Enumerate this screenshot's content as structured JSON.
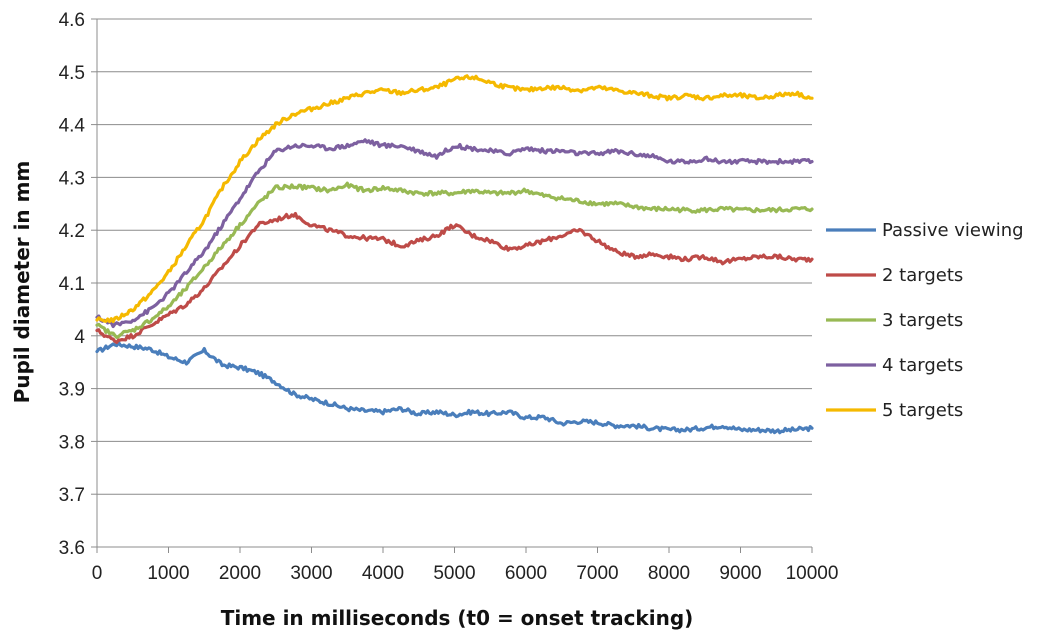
{
  "chart_data": {
    "type": "line",
    "xlabel": "Time in milliseconds (t0 = onset tracking)",
    "ylabel": "Pupil diameter in mm",
    "xlim": [
      0,
      10000
    ],
    "ylim": [
      3.6,
      4.6
    ],
    "x_ticks": [
      "0",
      "1000",
      "2000",
      "3000",
      "4000",
      "5000",
      "6000",
      "7000",
      "8000",
      "9000",
      "10000"
    ],
    "y_ticks": [
      "3.6",
      "3.7",
      "3.8",
      "3.9",
      "4",
      "4.1",
      "4.2",
      "4.3",
      "4.4",
      "4.5",
      "4.6"
    ],
    "grid": "horizontal",
    "legend_position": "right",
    "x": [
      0,
      250,
      500,
      750,
      1000,
      1250,
      1500,
      1750,
      2000,
      2250,
      2500,
      2750,
      3000,
      3250,
      3500,
      3750,
      4000,
      4250,
      4500,
      4750,
      5000,
      5250,
      5500,
      5750,
      6000,
      6250,
      6500,
      6750,
      7000,
      7250,
      7500,
      7750,
      8000,
      8250,
      8500,
      8750,
      9000,
      9250,
      9500,
      9750,
      10000
    ],
    "series": [
      {
        "name": "Passive viewing",
        "color": "#4a7ebb",
        "values": [
          3.97,
          3.985,
          3.98,
          3.975,
          3.96,
          3.95,
          3.972,
          3.945,
          3.94,
          3.93,
          3.912,
          3.89,
          3.88,
          3.872,
          3.862,
          3.858,
          3.856,
          3.862,
          3.852,
          3.856,
          3.85,
          3.856,
          3.852,
          3.856,
          3.845,
          3.846,
          3.834,
          3.838,
          3.836,
          3.83,
          3.83,
          3.825,
          3.822,
          3.822,
          3.826,
          3.83,
          3.822,
          3.822,
          3.82,
          3.822,
          3.825
        ]
      },
      {
        "name": "2 targets",
        "color": "#be4b48",
        "values": [
          4.01,
          3.99,
          4.0,
          4.02,
          4.04,
          4.06,
          4.09,
          4.13,
          4.17,
          4.21,
          4.22,
          4.23,
          4.21,
          4.2,
          4.19,
          4.185,
          4.183,
          4.17,
          4.18,
          4.19,
          4.21,
          4.19,
          4.18,
          4.165,
          4.17,
          4.18,
          4.19,
          4.2,
          4.18,
          4.16,
          4.15,
          4.155,
          4.15,
          4.145,
          4.15,
          4.14,
          4.145,
          4.15,
          4.15,
          4.145,
          4.145
        ]
      },
      {
        "name": "3 targets",
        "color": "#98b954",
        "values": [
          4.02,
          4.0,
          4.01,
          4.03,
          4.055,
          4.09,
          4.13,
          4.17,
          4.21,
          4.25,
          4.28,
          4.283,
          4.28,
          4.275,
          4.285,
          4.275,
          4.28,
          4.275,
          4.27,
          4.27,
          4.27,
          4.275,
          4.27,
          4.27,
          4.275,
          4.265,
          4.26,
          4.255,
          4.25,
          4.25,
          4.245,
          4.24,
          4.24,
          4.238,
          4.238,
          4.24,
          4.238,
          4.238,
          4.238,
          4.24,
          4.24
        ]
      },
      {
        "name": "4 targets",
        "color": "#7d60a0",
        "values": [
          4.035,
          4.02,
          4.03,
          4.05,
          4.08,
          4.12,
          4.16,
          4.21,
          4.26,
          4.31,
          4.35,
          4.36,
          4.36,
          4.355,
          4.36,
          4.37,
          4.36,
          4.36,
          4.35,
          4.34,
          4.36,
          4.355,
          4.35,
          4.345,
          4.355,
          4.35,
          4.35,
          4.345,
          4.345,
          4.35,
          4.345,
          4.34,
          4.33,
          4.33,
          4.335,
          4.33,
          4.33,
          4.33,
          4.33,
          4.33,
          4.33
        ]
      },
      {
        "name": "5 targets",
        "color": "#f5b900",
        "values": [
          4.03,
          4.03,
          4.05,
          4.08,
          4.12,
          4.17,
          4.22,
          4.28,
          4.33,
          4.37,
          4.4,
          4.42,
          4.43,
          4.44,
          4.45,
          4.46,
          4.465,
          4.46,
          4.465,
          4.47,
          4.485,
          4.49,
          4.48,
          4.47,
          4.465,
          4.47,
          4.47,
          4.465,
          4.47,
          4.465,
          4.46,
          4.455,
          4.45,
          4.455,
          4.45,
          4.455,
          4.455,
          4.45,
          4.455,
          4.46,
          4.45
        ]
      }
    ]
  }
}
